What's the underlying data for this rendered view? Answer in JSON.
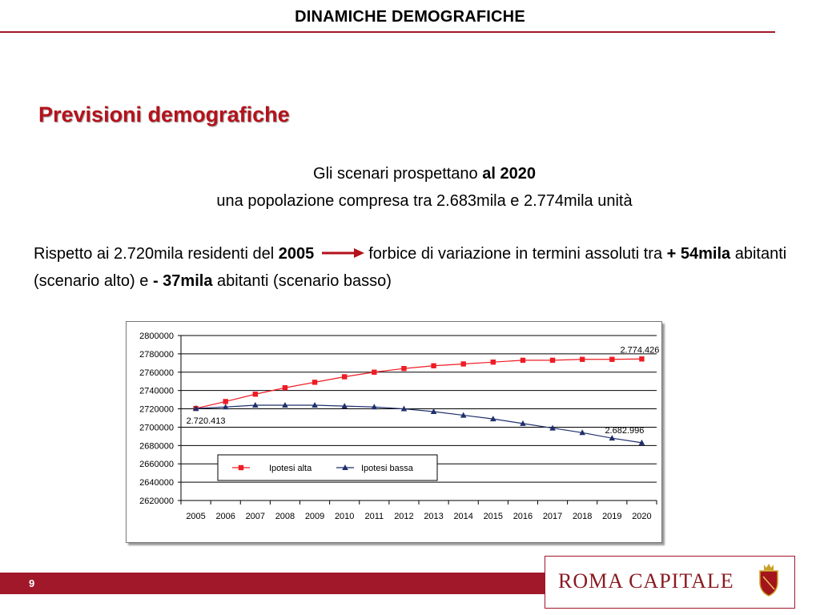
{
  "header": {
    "title": "DINAMICHE DEMOGRAFICHE"
  },
  "section": {
    "title": "Previsioni demografiche"
  },
  "scenario": {
    "line1_prefix": "Gli scenari prospettano ",
    "line1_bold": "al 2020",
    "line2": "una popolazione compresa tra 2.683mila e 2.774mila unità"
  },
  "paragraph": {
    "part1": "Rispetto ai 2.720mila residenti del ",
    "year_bold": "2005",
    "part2": "forbice di variazione in termini assoluti tra ",
    "high_bold": "+ 54mila",
    "part3": " abitanti (scenario alto) e ",
    "low_bold": "- 37mila",
    "part4": " abitanti (scenario basso)"
  },
  "colors": {
    "brand": "#a0182a",
    "title_red": "#b5121b",
    "series_alta": "#ee1c24",
    "series_bassa": "#1f2f6b"
  },
  "chart_data": {
    "type": "line",
    "title": "",
    "xlabel": "",
    "ylabel": "",
    "x": [
      2005,
      2006,
      2007,
      2008,
      2009,
      2010,
      2011,
      2012,
      2013,
      2014,
      2015,
      2016,
      2017,
      2018,
      2019,
      2020
    ],
    "ylim": [
      2620000,
      2800000
    ],
    "yticks": [
      2620000,
      2640000,
      2660000,
      2680000,
      2700000,
      2720000,
      2740000,
      2760000,
      2780000,
      2800000
    ],
    "grid": true,
    "legend_position": "bottom-left",
    "series": [
      {
        "name": "Ipotesi alta",
        "marker": "square",
        "values": [
          2720413,
          2728000,
          2736000,
          2743000,
          2749000,
          2755000,
          2760000,
          2764000,
          2767000,
          2769000,
          2771000,
          2773000,
          2773000,
          2774000,
          2774000,
          2774426
        ]
      },
      {
        "name": "Ipotesi bassa",
        "marker": "triangle",
        "values": [
          2720413,
          2722000,
          2724000,
          2724000,
          2724000,
          2723000,
          2722000,
          2720000,
          2717000,
          2713000,
          2709000,
          2704000,
          2699000,
          2694000,
          2688000,
          2682996
        ]
      }
    ],
    "annotations": [
      {
        "text": "2.720.413",
        "series": 0,
        "index": 0
      },
      {
        "text": "2.774.426",
        "series": 0,
        "index": 15
      },
      {
        "text": "2.682.996",
        "series": 1,
        "index": 15
      }
    ]
  },
  "footer": {
    "page_number": "9"
  },
  "logo": {
    "text": "ROMA CAPITALE",
    "emblem": "roma-shield-emblem"
  }
}
